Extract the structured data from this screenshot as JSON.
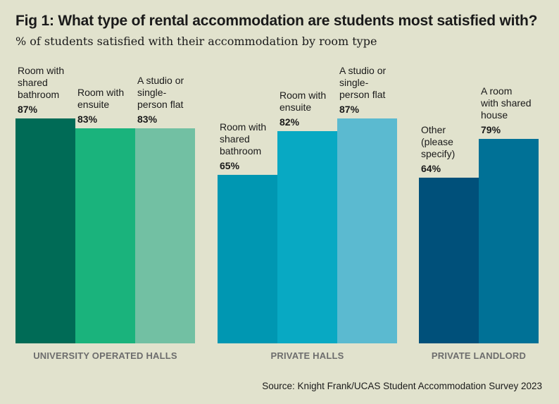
{
  "chart_data": {
    "type": "bar",
    "title": "Fig 1: What type of rental accommodation are students most satisfied with?",
    "subtitle": "% of students satisfied with their accommodation by room type",
    "ylim": [
      0,
      100
    ],
    "grid": false,
    "groups": [
      {
        "name": "UNIVERSITY OPERATED HALLS",
        "bars": [
          {
            "label": "Room with\nshared\nbathroom",
            "value": 87,
            "value_label": "87%",
            "color": "#006b56"
          },
          {
            "label": "Room with\nensuite",
            "value": 83,
            "value_label": "83%",
            "color": "#1ab37c"
          },
          {
            "label": "A studio or\nsingle-\nperson flat",
            "value": 83,
            "value_label": "83%",
            "color": "#72c0a3"
          }
        ]
      },
      {
        "name": "PRIVATE HALLS",
        "bars": [
          {
            "label": "Room with\nshared\nbathroom",
            "value": 65,
            "value_label": "65%",
            "color": "#0097b2"
          },
          {
            "label": "Room with\nensuite",
            "value": 82,
            "value_label": "82%",
            "color": "#08a9c3"
          },
          {
            "label": "A studio or\nsingle-\nperson flat",
            "value": 87,
            "value_label": "87%",
            "color": "#5bbad0"
          }
        ]
      },
      {
        "name": "PRIVATE LANDLORD",
        "bars": [
          {
            "label": "Other\n(please\nspecify)",
            "value": 64,
            "value_label": "64%",
            "color": "#00507a"
          },
          {
            "label": "A room\nwith shared\nhouse",
            "value": 79,
            "value_label": "79%",
            "color": "#007196"
          }
        ]
      }
    ],
    "source": "Source: Knight Frank/UCAS Student Accommodation Survey 2023"
  }
}
